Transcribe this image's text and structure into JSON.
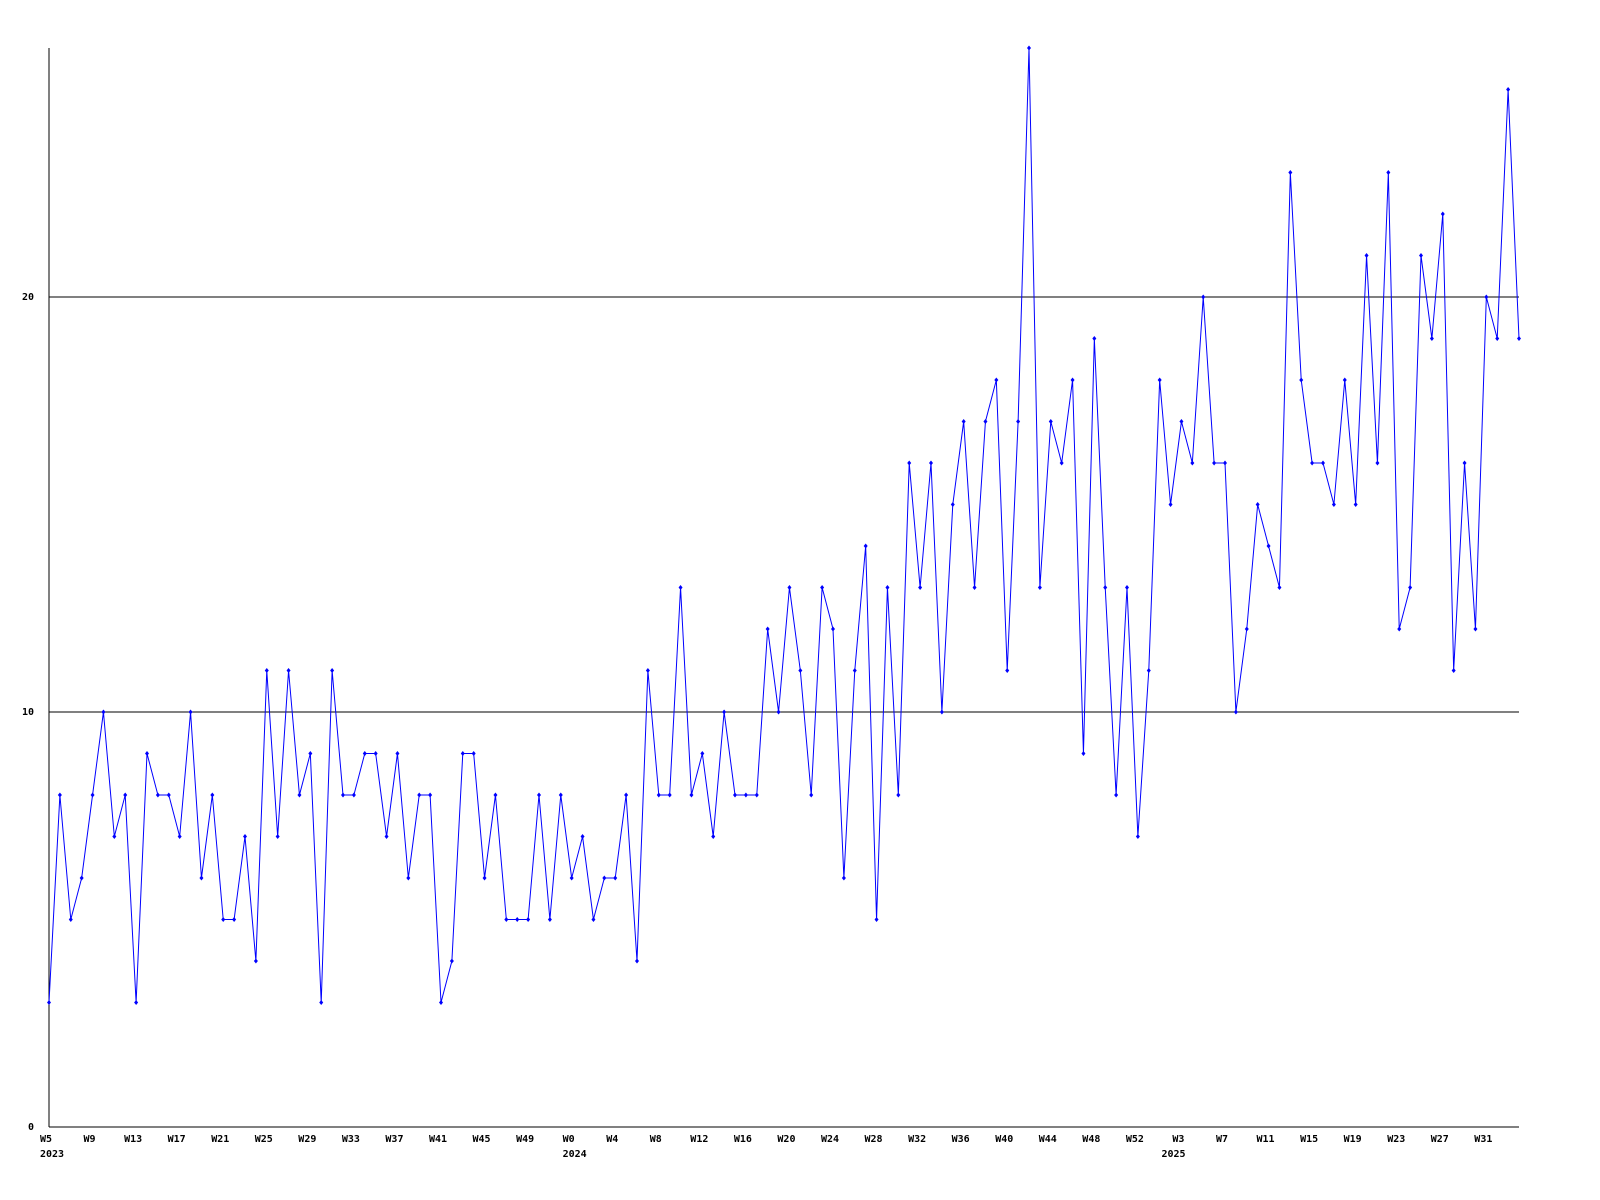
{
  "chart_data": {
    "type": "line",
    "color": "#0000ff",
    "grid": true,
    "ylim": [
      0,
      26
    ],
    "yticks": [
      0,
      10,
      20
    ],
    "categories": [
      "W5",
      null,
      null,
      null,
      "W9",
      null,
      null,
      null,
      "W13",
      null,
      null,
      null,
      "W17",
      null,
      null,
      null,
      "W21",
      null,
      null,
      null,
      "W25",
      null,
      null,
      null,
      "W29",
      null,
      null,
      null,
      "W33",
      null,
      null,
      null,
      "W37",
      null,
      null,
      null,
      "W41",
      null,
      null,
      null,
      "W45",
      null,
      null,
      null,
      "W49",
      null,
      null,
      null,
      "W0",
      null,
      null,
      null,
      "W4",
      null,
      null,
      null,
      "W8",
      null,
      null,
      null,
      "W12",
      null,
      null,
      null,
      "W16",
      null,
      null,
      null,
      "W20",
      null,
      null,
      null,
      "W24",
      null,
      null,
      null,
      "W28",
      null,
      null,
      null,
      "W32",
      null,
      null,
      null,
      "W36",
      null,
      null,
      null,
      "W40",
      null,
      null,
      null,
      "W44",
      null,
      null,
      null,
      "W48",
      null,
      null,
      null,
      "W52",
      null,
      null,
      null,
      "W3",
      null,
      null,
      null,
      "W7",
      null,
      null,
      null,
      "W11",
      null,
      null,
      null,
      "W15",
      null,
      null,
      null,
      "W19",
      null,
      null,
      null,
      "W23",
      null,
      null,
      null,
      "W27",
      null,
      null,
      null,
      "W31",
      null,
      null,
      null
    ],
    "years": [
      "2023",
      null,
      null,
      null,
      null,
      null,
      null,
      null,
      null,
      null,
      null,
      null,
      null,
      null,
      null,
      null,
      null,
      null,
      null,
      null,
      null,
      null,
      null,
      null,
      null,
      null,
      null,
      null,
      null,
      null,
      null,
      null,
      null,
      null,
      null,
      null,
      null,
      null,
      null,
      null,
      null,
      null,
      null,
      null,
      null,
      null,
      null,
      null,
      "2024",
      null,
      null,
      null,
      null,
      null,
      null,
      null,
      null,
      null,
      null,
      null,
      null,
      null,
      null,
      null,
      null,
      null,
      null,
      null,
      null,
      null,
      null,
      null,
      null,
      null,
      null,
      null,
      null,
      null,
      null,
      null,
      null,
      null,
      null,
      null,
      null,
      null,
      null,
      null,
      null,
      null,
      null,
      null,
      null,
      null,
      null,
      null,
      null,
      null,
      null,
      null,
      null,
      null,
      null,
      "2025",
      null,
      null,
      null,
      null,
      null,
      null,
      null,
      null,
      null,
      null,
      null,
      null,
      null,
      null,
      null,
      null,
      null,
      null,
      null,
      null,
      null,
      null,
      null,
      null,
      null,
      null,
      null,
      null,
      null,
      null,
      null,
      null,
      null
    ],
    "values": [
      3,
      8,
      5,
      6,
      8,
      10,
      7,
      8,
      3,
      9,
      8,
      8,
      7,
      10,
      6,
      8,
      5,
      5,
      7,
      4,
      11,
      7,
      11,
      8,
      9,
      3,
      11,
      8,
      8,
      9,
      9,
      7,
      9,
      6,
      8,
      8,
      3,
      4,
      9,
      9,
      6,
      8,
      5,
      5,
      5,
      8,
      5,
      8,
      6,
      7,
      5,
      6,
      6,
      8,
      4,
      11,
      8,
      8,
      13,
      8,
      9,
      7,
      10,
      8,
      8,
      8,
      12,
      10,
      13,
      11,
      8,
      13,
      12,
      6,
      11,
      14,
      5,
      13,
      8,
      16,
      13,
      16,
      10,
      15,
      17,
      13,
      17,
      18,
      11,
      17,
      26,
      13,
      17,
      16,
      18,
      9,
      19,
      13,
      8,
      13,
      7,
      11,
      18,
      15,
      17,
      16,
      20,
      16,
      16,
      10,
      12,
      15,
      14,
      13,
      23,
      18,
      16,
      16,
      15,
      18,
      15,
      21,
      16,
      23,
      12,
      13,
      21,
      19,
      22,
      11,
      16,
      12,
      20,
      19,
      25,
      19
    ]
  }
}
